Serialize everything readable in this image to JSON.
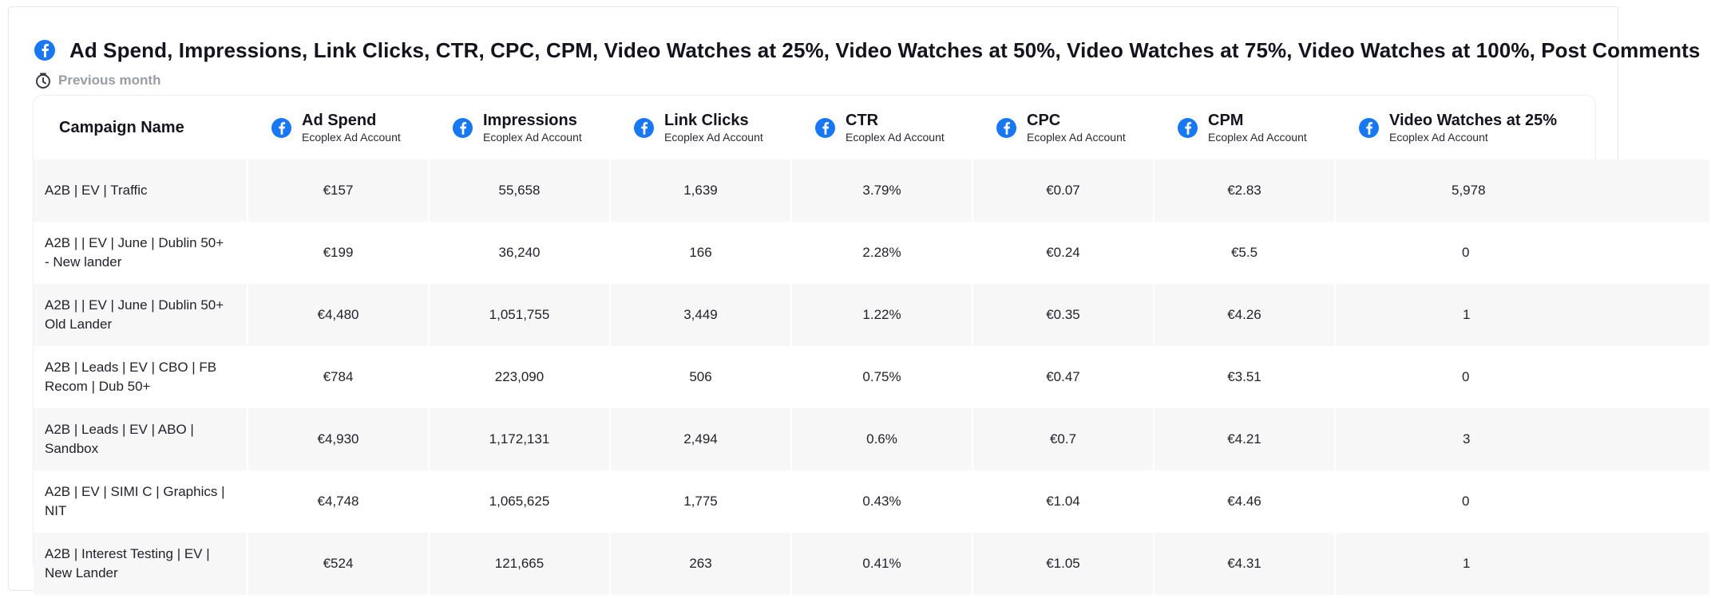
{
  "widget": {
    "title": "Ad Spend, Impressions, Link Clicks, CTR, CPC, CPM, Video Watches at 25%, Video Watches at 50%, Video Watches at 75%, Video Watches at 100%, Post Comments",
    "subtitle": "Previous month",
    "brand_color": "#1877f2",
    "title_icon": "facebook-icon",
    "subtitle_icon": "clock-icon"
  },
  "table": {
    "first_header": "Campaign Name",
    "columns": [
      {
        "label": "Ad Spend",
        "sub": "Ecoplex Ad Account"
      },
      {
        "label": "Impressions",
        "sub": "Ecoplex Ad Account"
      },
      {
        "label": "Link Clicks",
        "sub": "Ecoplex Ad Account"
      },
      {
        "label": "CTR",
        "sub": "Ecoplex Ad Account"
      },
      {
        "label": "CPC",
        "sub": "Ecoplex Ad Account"
      },
      {
        "label": "CPM",
        "sub": "Ecoplex Ad Account"
      },
      {
        "label": "Video Watches at 25%",
        "sub": "Ecoplex Ad Account"
      }
    ],
    "rows": [
      {
        "name": "A2B | EV | Traffic",
        "values": [
          "€157",
          "55,658",
          "1,639",
          "3.79%",
          "€0.07",
          "€2.83",
          "5,978"
        ]
      },
      {
        "name": "A2B | | EV | June | Dublin 50+ - New lander",
        "values": [
          "€199",
          "36,240",
          "166",
          "2.28%",
          "€0.24",
          "€5.5",
          "0"
        ]
      },
      {
        "name": "A2B | | EV | June | Dublin 50+ Old Lander",
        "values": [
          "€4,480",
          "1,051,755",
          "3,449",
          "1.22%",
          "€0.35",
          "€4.26",
          "1"
        ]
      },
      {
        "name": "A2B | Leads | EV | CBO | FB Recom | Dub 50+",
        "values": [
          "€784",
          "223,090",
          "506",
          "0.75%",
          "€0.47",
          "€3.51",
          "0"
        ]
      },
      {
        "name": "A2B | Leads | EV | ABO | Sandbox",
        "values": [
          "€4,930",
          "1,172,131",
          "2,494",
          "0.6%",
          "€0.7",
          "€4.21",
          "3"
        ]
      },
      {
        "name": "A2B | EV | SIMI C | Graphics | NIT",
        "values": [
          "€4,748",
          "1,065,625",
          "1,775",
          "0.43%",
          "€1.04",
          "€4.46",
          "0"
        ]
      },
      {
        "name": "A2B | Interest Testing | EV | New Lander",
        "values": [
          "€524",
          "121,665",
          "263",
          "0.41%",
          "€1.05",
          "€4.31",
          "1"
        ]
      }
    ]
  }
}
